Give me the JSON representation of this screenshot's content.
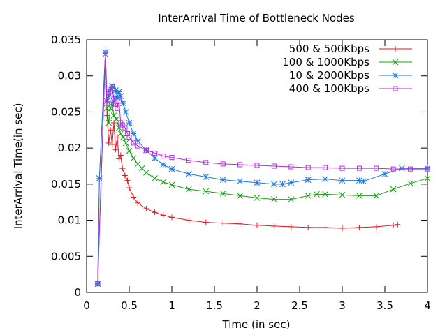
{
  "chart_data": {
    "type": "line",
    "title": "InterArrival Time of Bottleneck Nodes",
    "xlabel": "Time (in sec)",
    "ylabel": "InterArrival Time(in sec)",
    "xlim": [
      0,
      4
    ],
    "ylim": [
      0,
      0.035
    ],
    "xticks": [
      0,
      0.5,
      1,
      1.5,
      2,
      2.5,
      3,
      3.5,
      4
    ],
    "yticks": [
      0,
      0.005,
      0.01,
      0.015,
      0.02,
      0.025,
      0.03,
      0.035
    ],
    "xtick_labels": [
      "0",
      "0.5",
      "1",
      "1.5",
      "2",
      "2.5",
      "3",
      "3.5",
      "4"
    ],
    "ytick_labels": [
      "0",
      "0.005",
      "0.01",
      "0.015",
      "0.02",
      "0.025",
      "0.03",
      "0.035"
    ],
    "legend_position": "top-right",
    "grid": false,
    "series": [
      {
        "name": "500 & 500Kbps",
        "color": "#e8141e",
        "marker": "plus",
        "x": [
          0.13,
          0.22,
          0.24,
          0.26,
          0.28,
          0.3,
          0.32,
          0.34,
          0.36,
          0.38,
          0.4,
          0.42,
          0.45,
          0.48,
          0.5,
          0.55,
          0.6,
          0.7,
          0.8,
          0.9,
          1.0,
          1.2,
          1.4,
          1.6,
          1.8,
          2.0,
          2.2,
          2.4,
          2.6,
          2.8,
          3.0,
          3.2,
          3.4,
          3.6,
          3.65
        ],
        "y": [
          0.0012,
          0.0333,
          0.0245,
          0.0207,
          0.0225,
          0.0205,
          0.0235,
          0.0198,
          0.0215,
          0.0185,
          0.019,
          0.0172,
          0.0162,
          0.0155,
          0.0145,
          0.0132,
          0.0124,
          0.0116,
          0.0111,
          0.0107,
          0.0104,
          0.01,
          0.0097,
          0.0096,
          0.0095,
          0.0093,
          0.0092,
          0.0091,
          0.009,
          0.009,
          0.0089,
          0.009,
          0.0091,
          0.0093,
          0.0094
        ]
      },
      {
        "name": "100 & 1000Kbps",
        "color": "#14a014",
        "marker": "cross",
        "x": [
          0.13,
          0.15,
          0.22,
          0.24,
          0.26,
          0.28,
          0.3,
          0.32,
          0.35,
          0.38,
          0.4,
          0.43,
          0.46,
          0.5,
          0.55,
          0.6,
          0.65,
          0.7,
          0.8,
          0.9,
          1.0,
          1.2,
          1.4,
          1.6,
          1.8,
          2.0,
          2.2,
          2.4,
          2.6,
          2.7,
          2.8,
          3.0,
          3.2,
          3.4,
          3.6,
          3.8,
          4.0
        ],
        "y": [
          0.0012,
          0.0158,
          0.033,
          0.0255,
          0.0235,
          0.0255,
          0.0262,
          0.0245,
          0.024,
          0.0228,
          0.022,
          0.0215,
          0.0207,
          0.0196,
          0.0186,
          0.0178,
          0.0172,
          0.0166,
          0.0158,
          0.0153,
          0.0149,
          0.0143,
          0.014,
          0.0137,
          0.0134,
          0.0131,
          0.0129,
          0.0129,
          0.0134,
          0.0136,
          0.0136,
          0.0135,
          0.0134,
          0.0134,
          0.0143,
          0.0151,
          0.0158
        ]
      },
      {
        "name": "10 & 2000Kbps",
        "color": "#1e78e6",
        "marker": "star",
        "x": [
          0.13,
          0.15,
          0.22,
          0.24,
          0.26,
          0.28,
          0.3,
          0.32,
          0.34,
          0.36,
          0.38,
          0.4,
          0.43,
          0.46,
          0.5,
          0.55,
          0.6,
          0.7,
          0.8,
          0.9,
          1.0,
          1.2,
          1.4,
          1.6,
          1.8,
          2.0,
          2.2,
          2.3,
          2.4,
          2.6,
          2.8,
          3.0,
          3.2,
          3.25,
          3.5,
          3.7,
          4.0
        ],
        "y": [
          0.0012,
          0.0158,
          0.0333,
          0.0265,
          0.0272,
          0.0282,
          0.0286,
          0.0265,
          0.028,
          0.027,
          0.0278,
          0.0272,
          0.0262,
          0.025,
          0.0235,
          0.022,
          0.021,
          0.0197,
          0.0186,
          0.0177,
          0.0171,
          0.0164,
          0.016,
          0.0156,
          0.0154,
          0.0152,
          0.015,
          0.015,
          0.0152,
          0.0156,
          0.0157,
          0.0155,
          0.0155,
          0.0154,
          0.0164,
          0.0172,
          0.0172
        ]
      },
      {
        "name": "400 & 100Kbps",
        "color": "#b428e6",
        "marker": "square",
        "x": [
          0.13,
          0.22,
          0.24,
          0.26,
          0.28,
          0.3,
          0.32,
          0.34,
          0.36,
          0.38,
          0.4,
          0.42,
          0.45,
          0.48,
          0.5,
          0.55,
          0.6,
          0.7,
          0.8,
          0.9,
          1.0,
          1.2,
          1.4,
          1.6,
          1.8,
          2.0,
          2.2,
          2.4,
          2.6,
          2.8,
          3.0,
          3.2,
          3.4,
          3.6,
          3.8,
          4.0
        ],
        "y": [
          0.0012,
          0.0333,
          0.0262,
          0.0275,
          0.0278,
          0.0285,
          0.0268,
          0.026,
          0.0255,
          0.0265,
          0.0235,
          0.0232,
          0.0228,
          0.022,
          0.0215,
          0.0207,
          0.0203,
          0.0197,
          0.0193,
          0.0189,
          0.0187,
          0.0183,
          0.018,
          0.0178,
          0.0177,
          0.0176,
          0.0175,
          0.0174,
          0.0173,
          0.0173,
          0.0172,
          0.0172,
          0.0172,
          0.0171,
          0.0171,
          0.0171
        ]
      }
    ]
  }
}
